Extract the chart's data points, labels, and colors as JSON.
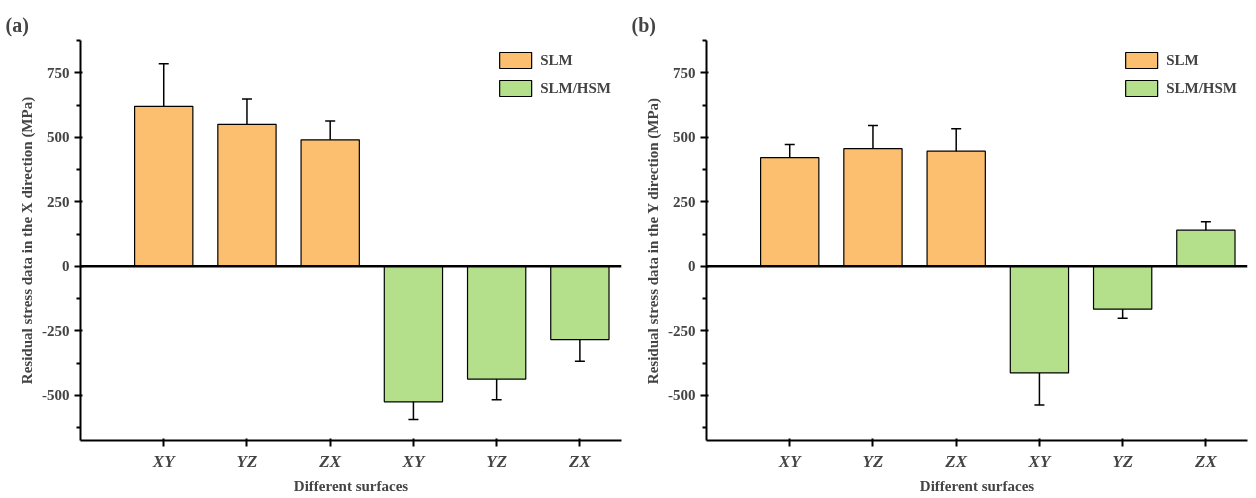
{
  "chart_data": [
    {
      "type": "bar",
      "title": "(a)",
      "xlabel": "Different surfaces",
      "ylabel": "Residual stress data in the X direction (MPa)",
      "categories": [
        "XY",
        "YZ",
        "ZX",
        "XY",
        "YZ",
        "ZX"
      ],
      "series": [
        {
          "name": "SLM",
          "color": "#fbbf6f",
          "values": [
            620,
            550,
            490,
            null,
            null,
            null
          ],
          "errors": [
            165,
            98,
            73,
            null,
            null,
            null
          ]
        },
        {
          "name": "SLM/HSM",
          "color": "#b5e08b",
          "values": [
            null,
            null,
            null,
            -525,
            -437,
            -284
          ],
          "errors": [
            null,
            null,
            null,
            69,
            80,
            84
          ]
        }
      ],
      "ylim": [
        -675,
        875
      ],
      "yticks": [
        -500,
        -250,
        0,
        250,
        500,
        750
      ],
      "ref_lines": [
        {
          "axis": "y",
          "value": 0
        }
      ],
      "legend": "top right",
      "grid": false
    },
    {
      "type": "bar",
      "title": "(b)",
      "xlabel": "Different surfaces",
      "ylabel": "Residual stress data in the Y direction (MPa)",
      "categories": [
        "XY",
        "YZ",
        "ZX",
        "XY",
        "YZ",
        "ZX"
      ],
      "series": [
        {
          "name": "SLM",
          "color": "#fbbf6f",
          "values": [
            421,
            456,
            446,
            null,
            null,
            null
          ],
          "errors": [
            51,
            90,
            87,
            null,
            null,
            null
          ]
        },
        {
          "name": "SLM/HSM",
          "color": "#b5e08b",
          "values": [
            null,
            null,
            null,
            -413,
            -166,
            140
          ],
          "errors": [
            null,
            null,
            null,
            124,
            35,
            33
          ]
        }
      ],
      "ylim": [
        -675,
        875
      ],
      "yticks": [
        -500,
        -250,
        0,
        250,
        500,
        750
      ],
      "ref_lines": [
        {
          "axis": "y",
          "value": 0
        }
      ],
      "legend": "top right",
      "grid": false
    }
  ]
}
